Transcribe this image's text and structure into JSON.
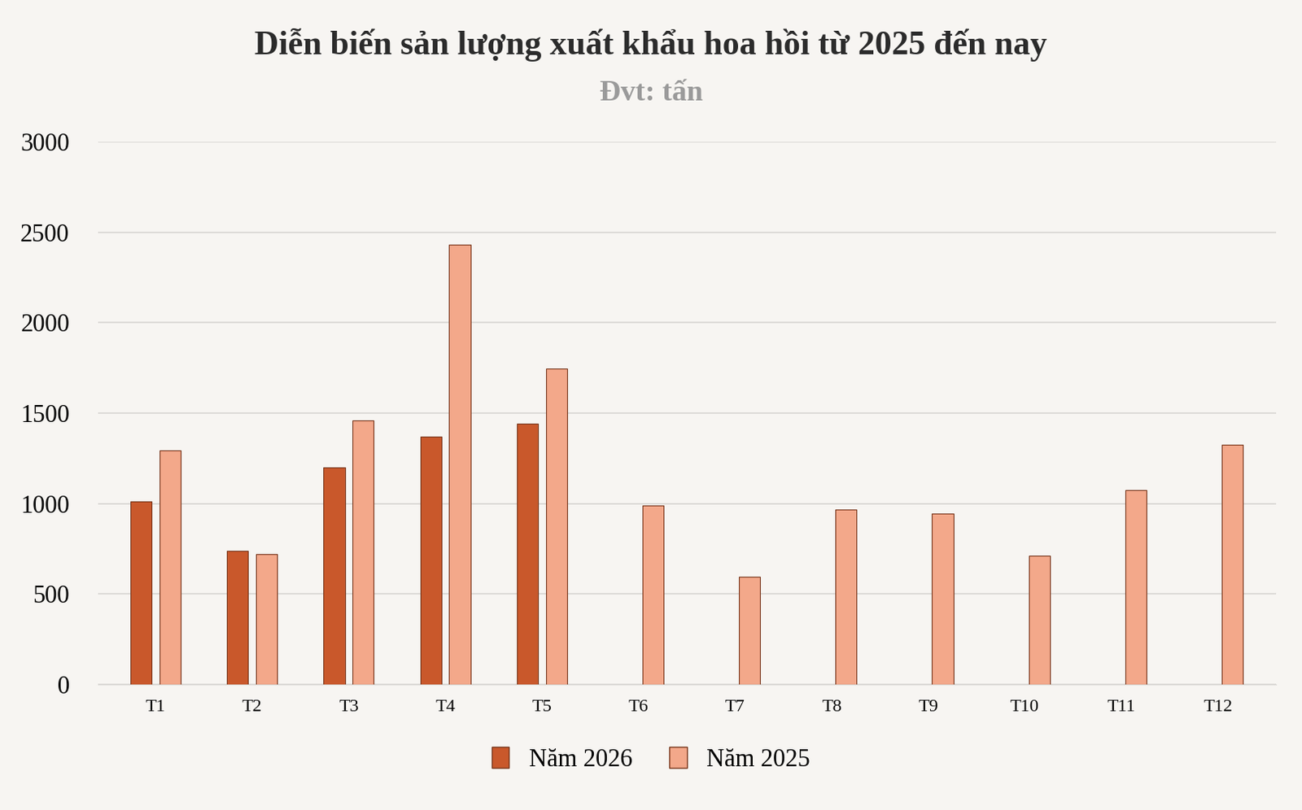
{
  "chart_data": {
    "type": "bar",
    "title": "Diễn biến sản lượng xuất khẩu hoa hồi từ 2025 đến nay",
    "subtitle": "Đvt: tấn",
    "categories": [
      "T1",
      "T2",
      "T3",
      "T4",
      "T5",
      "T6",
      "T7",
      "T8",
      "T9",
      "T10",
      "T11",
      "T12"
    ],
    "series": [
      {
        "name": "Năm 2026",
        "color": "#c9582b",
        "values": [
          1010,
          740,
          1200,
          1370,
          1440,
          null,
          null,
          null,
          null,
          null,
          null,
          null
        ]
      },
      {
        "name": "Năm 2025",
        "color": "#f3a88a",
        "values": [
          1295,
          720,
          1460,
          2430,
          1745,
          990,
          595,
          965,
          945,
          710,
          1075,
          1325
        ]
      }
    ],
    "ylim": [
      0,
      3000
    ],
    "yticks": [
      0,
      500,
      1000,
      1500,
      2000,
      2500,
      3000
    ],
    "grid": true,
    "legend": "lower center"
  }
}
